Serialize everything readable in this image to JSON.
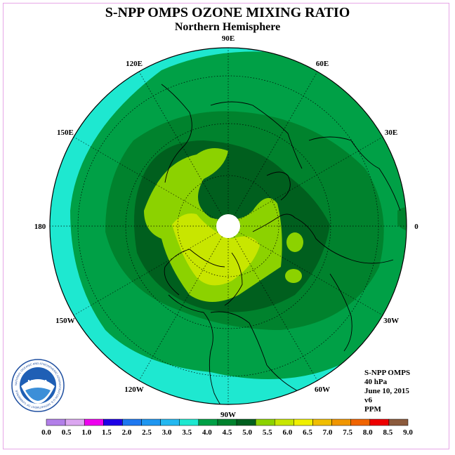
{
  "title": "S-NPP OMPS OZONE MIXING RATIO",
  "subtitle": "Northern Hemisphere",
  "meridian_labels": [
    "90E",
    "60E",
    "30E",
    "0",
    "30W",
    "60W",
    "90W",
    "120W",
    "150W",
    "180",
    "150E",
    "120E"
  ],
  "info": [
    "S-NPP OMPS",
    "40 hPa",
    "June 10, 2015",
    "v6",
    "PPM"
  ],
  "colorbar": {
    "ticks": [
      "0.0",
      "0.5",
      "1.0",
      "1.5",
      "2.0",
      "2.5",
      "3.0",
      "3.5",
      "4.0",
      "4.5",
      "5.0",
      "5.5",
      "6.0",
      "6.5",
      "7.0",
      "7.5",
      "8.0",
      "8.5",
      "9.0"
    ],
    "colors": [
      "#b27fe8",
      "#dba6f0",
      "#ee00ee",
      "#1e00e6",
      "#1e78f0",
      "#1e96f0",
      "#23b8f0",
      "#1ee8d0",
      "#00a046",
      "#00822d",
      "#005f1e",
      "#8cd200",
      "#c8e600",
      "#f0f000",
      "#f0be00",
      "#f09600",
      "#f06400",
      "#ee0000",
      "#8b5a3c"
    ]
  },
  "logo_text": "NOAA",
  "logo_ring_text": "NATIONAL OCEANIC AND ATMOSPHERIC ADMINISTRATION U.S. DEPARTMENT OF COMMERCE",
  "map_colors": {
    "c35": "#1ee8d0",
    "c40": "#00a046",
    "c45": "#00822d",
    "c50": "#005f1e",
    "c55": "#8cd200",
    "c60": "#c8e600",
    "coast": "#000000"
  }
}
